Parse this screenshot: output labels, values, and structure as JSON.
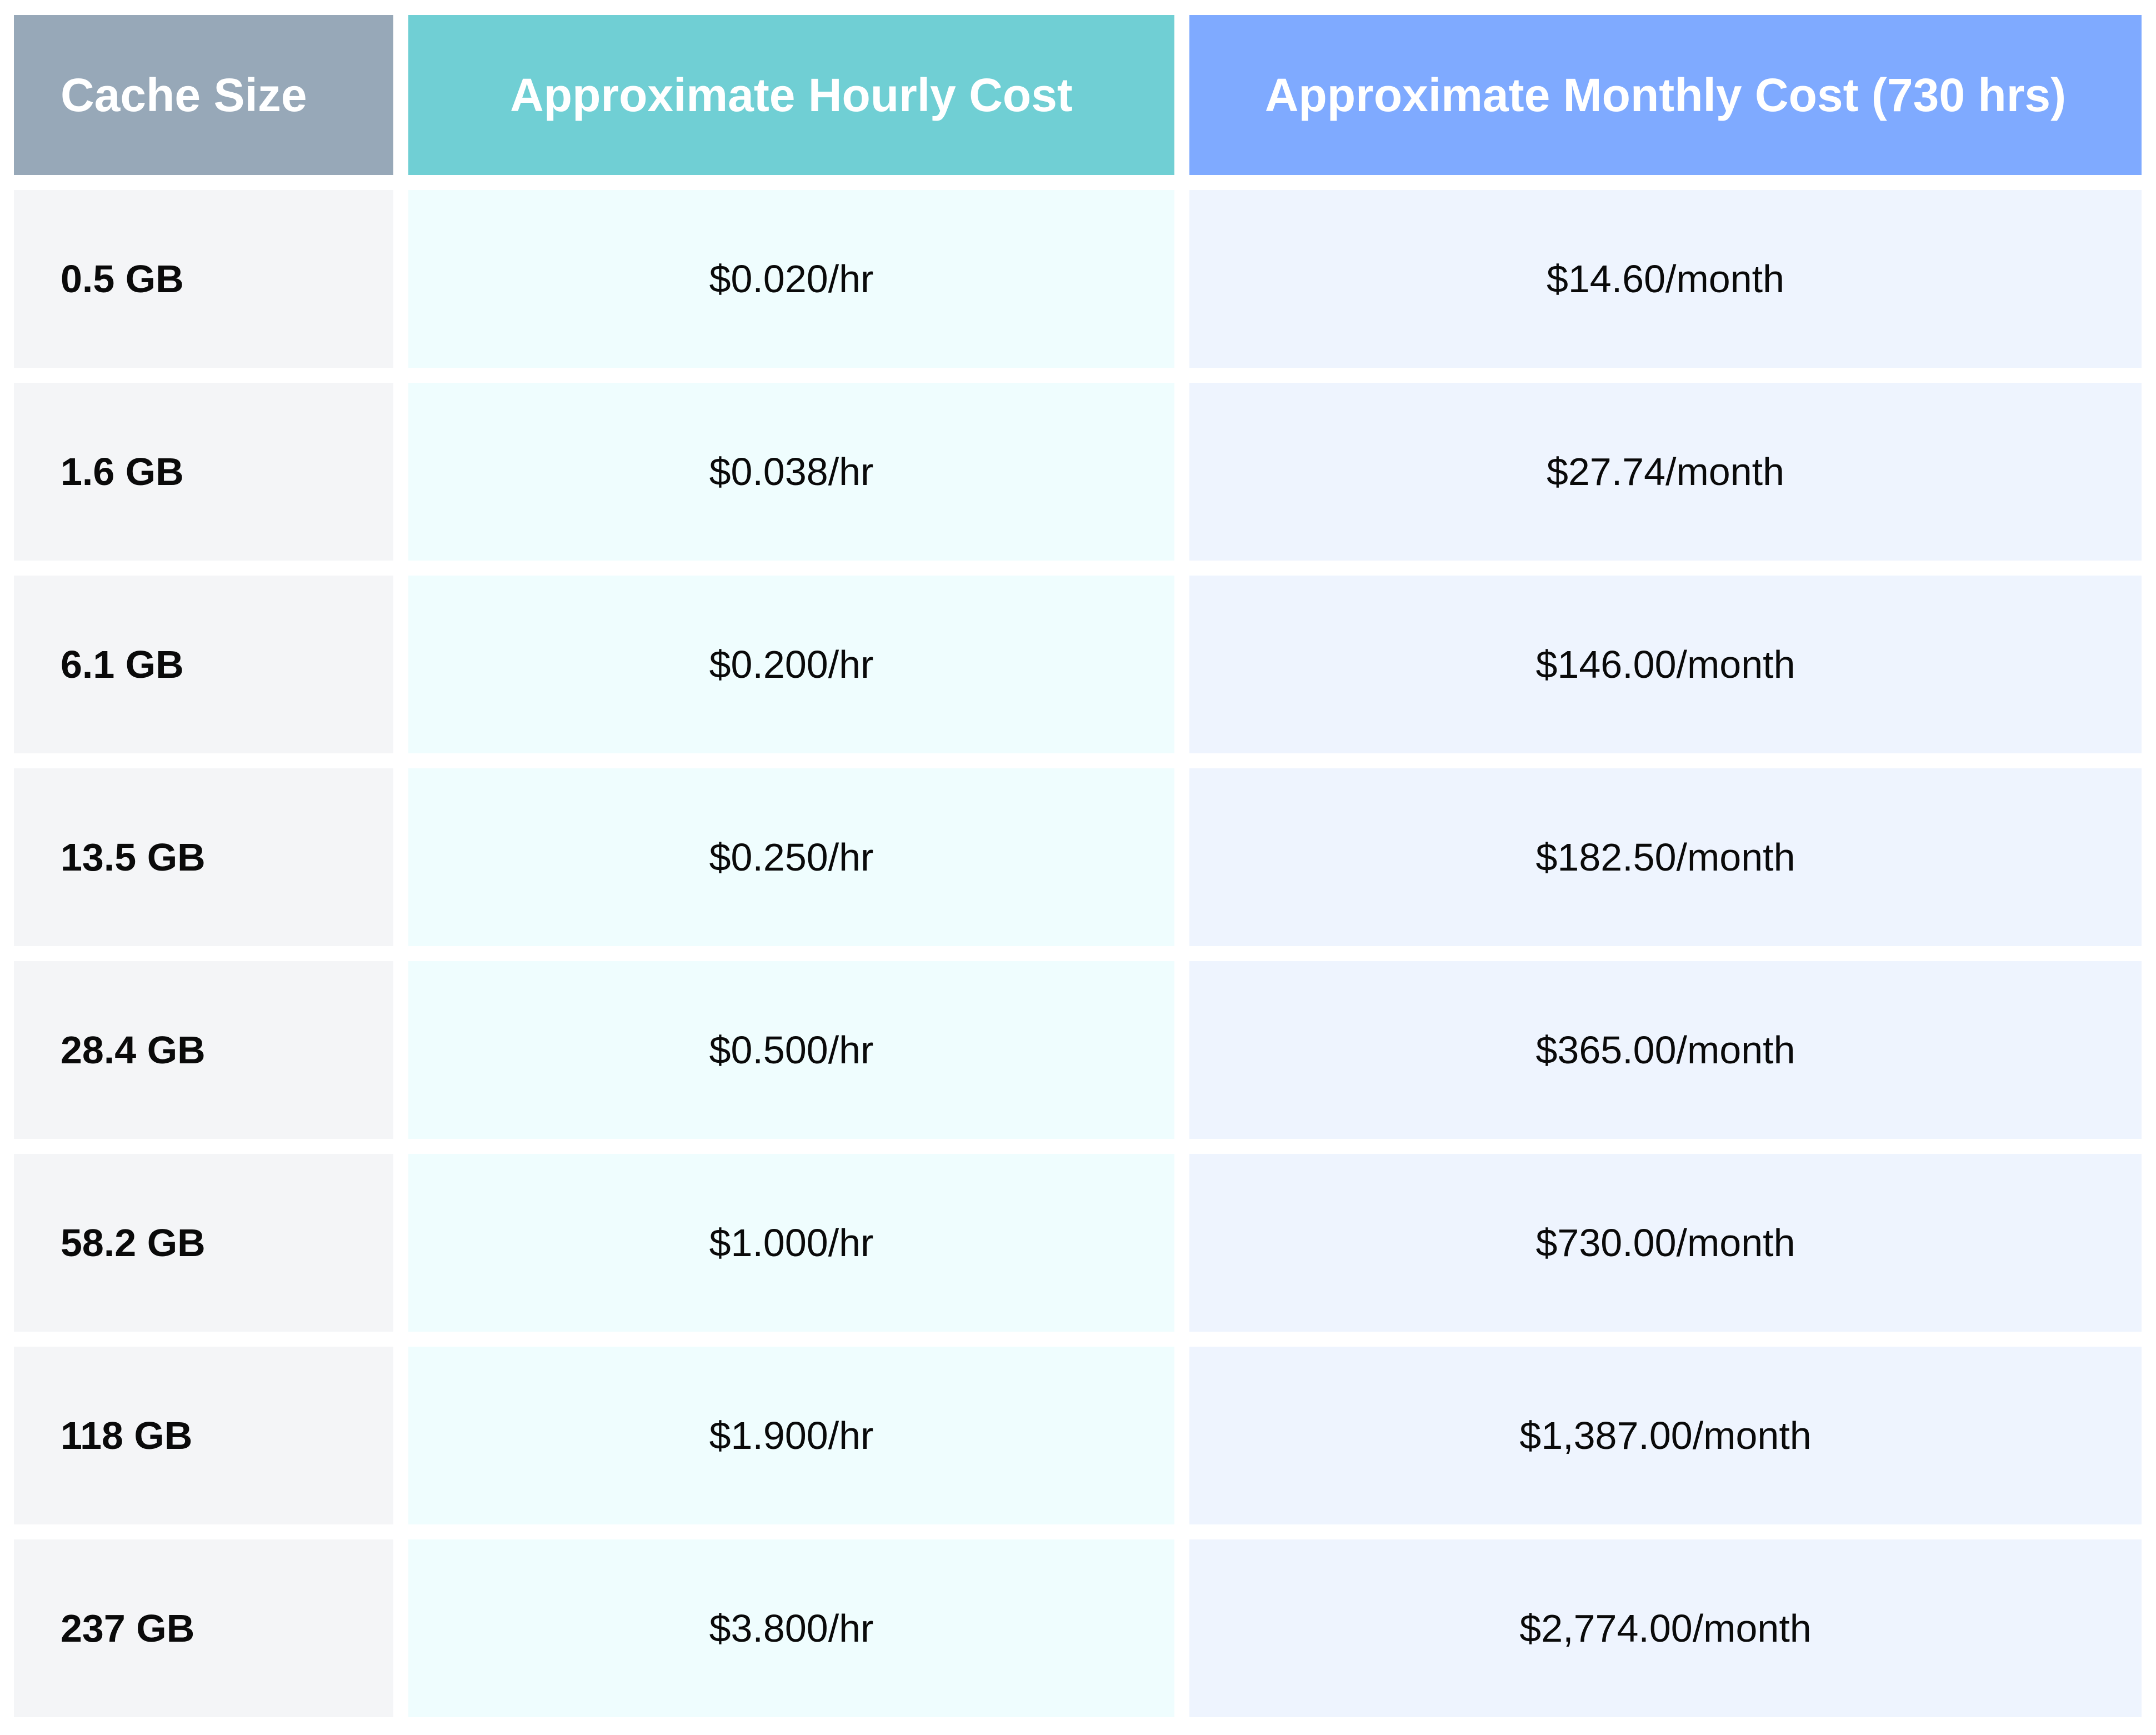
{
  "colors": {
    "header_col1": "#97a8b8",
    "header_col2": "#70cfd4",
    "header_col3": "#7faaff",
    "body_col1": "#f4f5f7",
    "body_col2": "#effdfe",
    "body_col3": "#eef4fe"
  },
  "table": {
    "headers": [
      "Cache Size",
      "Approximate Hourly Cost",
      "Approximate Monthly Cost (730 hrs)"
    ],
    "rows": [
      [
        "0.5 GB",
        "$0.020/hr",
        "$14.60/month"
      ],
      [
        "1.6 GB",
        "$0.038/hr",
        "$27.74/month"
      ],
      [
        "6.1 GB",
        "$0.200/hr",
        "$146.00/month"
      ],
      [
        "13.5 GB",
        "$0.250/hr",
        "$182.50/month"
      ],
      [
        "28.4 GB",
        "$0.500/hr",
        "$365.00/month"
      ],
      [
        "58.2 GB",
        "$1.000/hr",
        "$730.00/month"
      ],
      [
        "118 GB",
        "$1.900/hr",
        "$1,387.00/month"
      ],
      [
        "237 GB",
        "$3.800/hr",
        "$2,774.00/month"
      ]
    ]
  }
}
